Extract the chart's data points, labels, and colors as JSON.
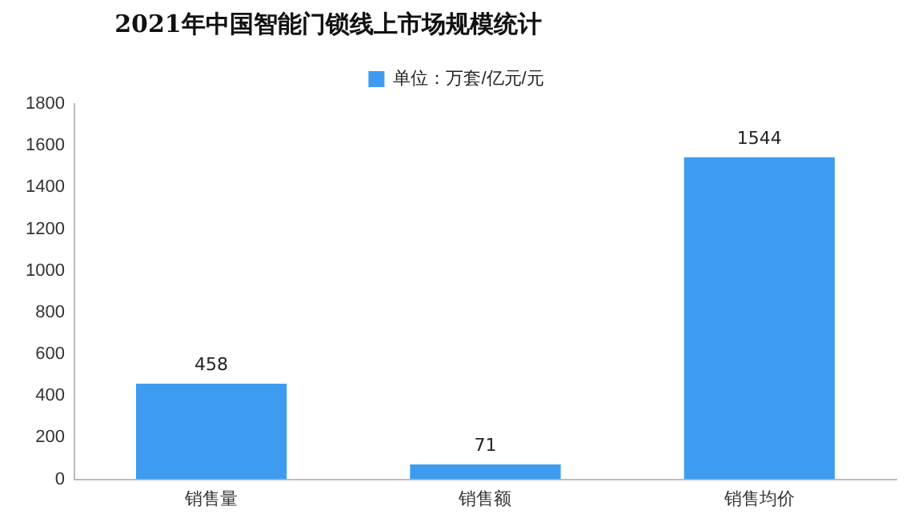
{
  "chart_data": {
    "type": "bar",
    "title": "2021年中国智能门锁线上市场规模统计",
    "categories": [
      "销售量",
      "销售额",
      "销售均价"
    ],
    "series": [
      {
        "name": "单位：万套/亿元/元",
        "color": "#3d9cf0",
        "values": [
          458,
          71,
          1544
        ]
      }
    ],
    "ylim": [
      0,
      1800
    ],
    "yticks": [
      0,
      200,
      400,
      600,
      800,
      1000,
      1200,
      1400,
      1600,
      1800
    ],
    "grid": false,
    "legend": "top",
    "data_labels": true
  }
}
